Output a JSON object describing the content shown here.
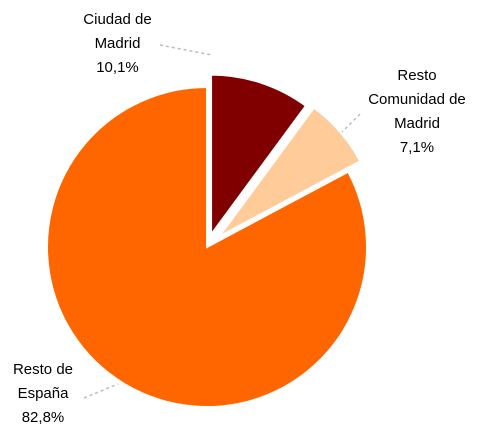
{
  "chart_data": {
    "type": "pie",
    "categories": [
      "Ciudad de Madrid",
      "Resto Comunidad de Madrid",
      "Resto de España"
    ],
    "values": [
      10.1,
      7.1,
      82.8
    ],
    "value_labels": [
      "10,1%",
      "7,1%",
      "82,8%"
    ],
    "colors": [
      "#800000",
      "#ffcc99",
      "#ff6600"
    ]
  }
}
